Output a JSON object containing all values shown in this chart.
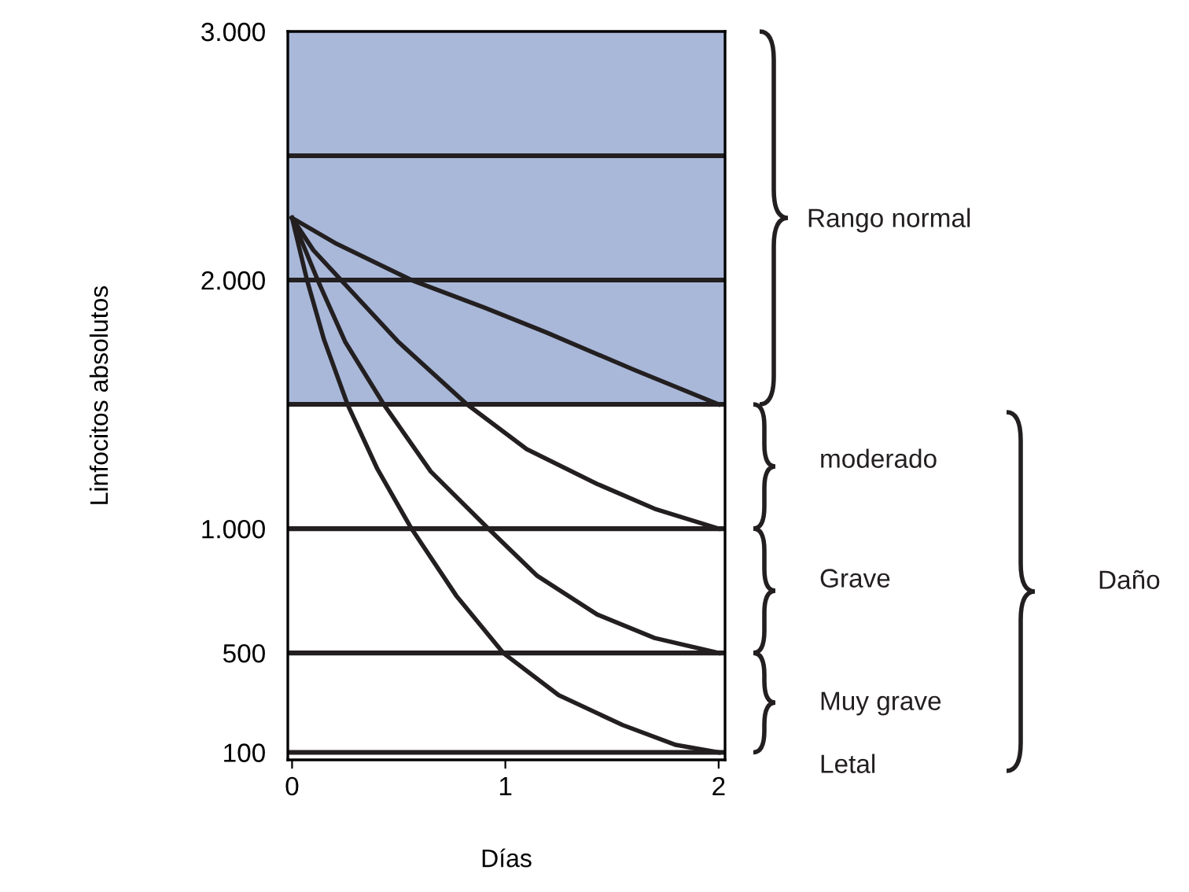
{
  "chart_data": {
    "type": "line",
    "xlabel": "Días",
    "ylabel": "Linfocitos absolutos",
    "xlim": [
      -0.02,
      2.03
    ],
    "xticks": [
      0,
      1,
      2
    ],
    "ylim": [
      70,
      3000
    ],
    "yticks": [
      {
        "value": 100,
        "label": "100"
      },
      {
        "value": 500,
        "label": "500"
      },
      {
        "value": 1000,
        "label": "1.000"
      },
      {
        "value": 2000,
        "label": "2.000"
      },
      {
        "value": 3000,
        "label": "3.000"
      }
    ],
    "grid": false,
    "legend": false,
    "marker": "none",
    "line_style": "solid",
    "series": [
      {
        "color": "#231f20",
        "x": [
          0,
          0.2,
          0.56,
          0.9,
          1.19,
          1.6,
          2
        ],
        "values": [
          2250,
          2150,
          2000,
          1890,
          1790,
          1640,
          1500
        ]
      },
      {
        "color": "#231f20",
        "x": [
          0,
          0.1,
          0.23,
          0.5,
          0.82,
          1.1,
          1.43,
          1.7,
          2
        ],
        "values": [
          2250,
          2120,
          2000,
          1750,
          1500,
          1320,
          1180,
          1080,
          1000
        ]
      },
      {
        "color": "#231f20",
        "x": [
          0,
          0.12,
          0.25,
          0.43,
          0.65,
          0.92,
          1.15,
          1.43,
          1.7,
          2
        ],
        "values": [
          2250,
          2000,
          1750,
          1500,
          1230,
          1000,
          810,
          655,
          560,
          500
        ]
      },
      {
        "color": "#231f20",
        "x": [
          0,
          0.07,
          0.15,
          0.26,
          0.4,
          0.56,
          0.77,
          0.99,
          1.25,
          1.55,
          1.8,
          2
        ],
        "values": [
          2250,
          2000,
          1760,
          1500,
          1240,
          1000,
          730,
          500,
          330,
          210,
          130,
          100
        ]
      }
    ],
    "ref_lines": [
      {
        "axis": "y",
        "value": 2500,
        "color": "#231f20"
      },
      {
        "axis": "y",
        "value": 2000,
        "color": "#231f20"
      },
      {
        "axis": "y",
        "value": 1500,
        "color": "#231f20"
      },
      {
        "axis": "y",
        "value": 1000,
        "color": "#231f20"
      },
      {
        "axis": "y",
        "value": 500,
        "color": "#231f20"
      },
      {
        "axis": "y",
        "value": 100,
        "color": "#231f20"
      }
    ],
    "bands": [
      {
        "axis": "y",
        "from": 1500,
        "to": 3000,
        "color": "#a9b8d9"
      }
    ],
    "annotations": [
      "Rango normal",
      "moderado",
      "Grave",
      "Muy grave",
      "Letal",
      "Daño"
    ]
  }
}
